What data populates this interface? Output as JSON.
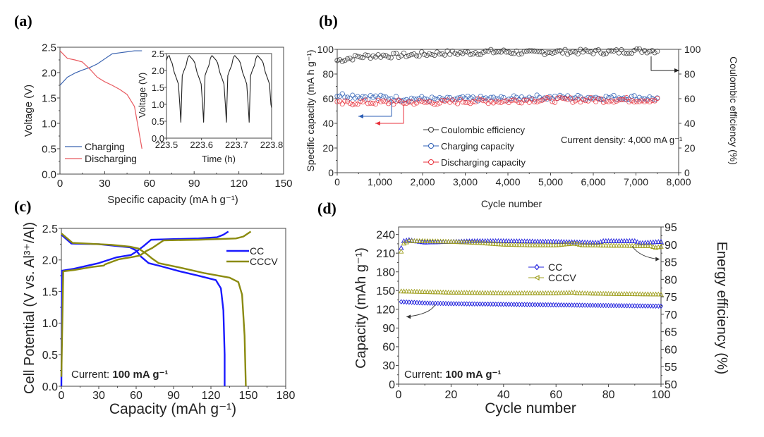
{
  "panels": {
    "a": {
      "label": "(a)"
    },
    "b": {
      "label": "(b)"
    },
    "c": {
      "label": "(c)"
    },
    "d": {
      "label": "(d)"
    }
  },
  "chart_data": [
    {
      "id": "a",
      "type": "line",
      "title": "",
      "xlabel": "Specific capacity (mA h g⁻¹)",
      "ylabel": "Voltage (V)",
      "xlim": [
        0,
        150
      ],
      "ylim": [
        0,
        2.5
      ],
      "xticks": [
        0,
        30,
        60,
        90,
        120,
        150
      ],
      "yticks": [
        0.0,
        0.5,
        1.0,
        1.5,
        2.0,
        2.5
      ],
      "xtick_labels": [
        "0",
        "30",
        "60",
        "90",
        "120",
        "150"
      ],
      "ytick_labels": [
        "0.0",
        "0.5",
        "1.0",
        "1.5",
        "2.0",
        "2.5"
      ],
      "legend": {
        "position": "bottom-left",
        "entries": [
          "Charging",
          "Discharging"
        ]
      },
      "series": [
        {
          "name": "Charging",
          "color": "#3a63b0",
          "x": [
            0,
            5,
            10,
            15,
            20,
            25,
            30,
            35,
            40,
            45,
            50,
            55
          ],
          "y": [
            1.75,
            1.91,
            1.99,
            2.05,
            2.1,
            2.17,
            2.27,
            2.37,
            2.39,
            2.41,
            2.43,
            2.43
          ]
        },
        {
          "name": "Discharging",
          "color": "#e8595f",
          "x": [
            0,
            5,
            10,
            15,
            20,
            25,
            30,
            35,
            40,
            45,
            50,
            55
          ],
          "y": [
            2.43,
            2.28,
            2.25,
            2.21,
            2.07,
            1.91,
            1.82,
            1.75,
            1.67,
            1.57,
            1.33,
            0.5
          ]
        }
      ],
      "inset": {
        "type": "line",
        "xlabel": "Time (h)",
        "ylabel": "Voltage (V)",
        "xlim": [
          223.5,
          223.8
        ],
        "ylim": [
          0,
          2.5
        ],
        "xticks": [
          223.5,
          223.6,
          223.7,
          223.8
        ],
        "yticks": [
          0.0,
          0.5,
          1.0,
          1.5,
          2.0,
          2.5
        ],
        "xtick_labels": [
          "223.5",
          "223.6",
          "223.7",
          "223.8"
        ],
        "ytick_labels": [
          "0.0",
          "0.5",
          "1.0",
          "1.5",
          "2.0",
          "2.5"
        ],
        "series": [
          {
            "name": "Voltage profile",
            "color": "#222222",
            "cycle_start_times": [
              223.5,
              223.542,
              223.607,
              223.672,
              223.737
            ],
            "cycle_period_h": 0.065,
            "min_voltage": 0.47,
            "max_voltage": 2.44
          }
        ]
      }
    },
    {
      "id": "b",
      "type": "scatter",
      "xlabel": "Cycle number",
      "ylabel": "Specific capacity (mA h g⁻¹)",
      "y2label": "Coulombic efficiency (%)",
      "xlim": [
        0,
        8000
      ],
      "ylim": [
        0,
        100
      ],
      "y2lim": [
        0,
        100
      ],
      "xticks": [
        0,
        1000,
        2000,
        3000,
        4000,
        5000,
        6000,
        7000,
        8000
      ],
      "xtick_labels": [
        "0",
        "1,000",
        "2,000",
        "3,000",
        "4,000",
        "5,000",
        "6,000",
        "7,000",
        "8,000"
      ],
      "yticks": [
        0,
        20,
        40,
        60,
        80,
        100
      ],
      "ytick_labels": [
        "0",
        "20",
        "40",
        "60",
        "80",
        "100"
      ],
      "y2ticks": [
        0,
        20,
        40,
        60,
        80,
        100
      ],
      "y2tick_labels": [
        "0",
        "20",
        "40",
        "60",
        "80",
        "100"
      ],
      "annotation": "Current density: 4,000 mA g⁻¹",
      "legend": {
        "position": "bottom-left",
        "entries": [
          "Coulombic efficiency",
          "Charging capacity",
          "Discharging capacity"
        ]
      },
      "series": [
        {
          "name": "Coulombic efficiency",
          "color": "#333333",
          "axis": "right",
          "x": [
            0,
            500,
            1000,
            1500,
            2000,
            2500,
            3000,
            3500,
            4000,
            4500,
            5000,
            5500,
            6000,
            6500,
            7000,
            7550
          ],
          "y": [
            91,
            94,
            95,
            95,
            96,
            97,
            97,
            98,
            98,
            97,
            98,
            98,
            98,
            98,
            99,
            99
          ]
        },
        {
          "name": "Charging capacity",
          "color": "#2e5fb5",
          "axis": "left",
          "x": [
            0,
            500,
            1000,
            1500,
            2000,
            2500,
            3000,
            3500,
            4000,
            4500,
            5000,
            5500,
            6000,
            6500,
            7000,
            7550
          ],
          "y": [
            63,
            62,
            61,
            60,
            60,
            59,
            60,
            60,
            60,
            61,
            61,
            61,
            61,
            61,
            61,
            60
          ]
        },
        {
          "name": "Discharging capacity",
          "color": "#e8323c",
          "axis": "left",
          "x": [
            0,
            500,
            1000,
            1500,
            2000,
            2500,
            3000,
            3500,
            4000,
            4500,
            5000,
            5500,
            6000,
            6500,
            7000,
            7550
          ],
          "y": [
            56,
            57,
            57,
            57,
            57,
            57,
            58,
            58,
            58,
            59,
            59,
            59,
            59,
            59,
            59,
            59
          ]
        }
      ]
    },
    {
      "id": "c",
      "type": "line",
      "xlabel": "Capacity (mAh g⁻¹)",
      "ylabel": "Cell Potential (V vs. Al³⁺/Al)",
      "xlim": [
        0,
        180
      ],
      "ylim": [
        0,
        2.5
      ],
      "xticks": [
        0,
        30,
        60,
        90,
        120,
        150,
        180
      ],
      "xtick_labels": [
        "0",
        "30",
        "60",
        "90",
        "120",
        "150",
        "180"
      ],
      "yticks": [
        0.0,
        0.5,
        1.0,
        1.5,
        2.0,
        2.5
      ],
      "ytick_labels": [
        "0.0",
        "0.5",
        "1.0",
        "1.5",
        "2.0",
        "2.5"
      ],
      "annotation": {
        "prefix": "Current: ",
        "bold": "100 mA g⁻¹"
      },
      "legend": {
        "position": "top-right",
        "entries": [
          "CC",
          "CCCV"
        ]
      },
      "series": [
        {
          "name": "CC charge",
          "legend": "CC",
          "color": "#1a1aff",
          "x": [
            0,
            0.5,
            10,
            30,
            44,
            56,
            60,
            66,
            72,
            90,
            110,
            125,
            130,
            134
          ],
          "y": [
            0.0,
            1.83,
            1.86,
            1.95,
            2.04,
            2.08,
            2.13,
            2.22,
            2.32,
            2.33,
            2.34,
            2.36,
            2.4,
            2.45
          ]
        },
        {
          "name": "CC discharge",
          "legend": "CC",
          "color": "#1a1aff",
          "x": [
            0,
            8,
            30,
            55,
            60,
            64,
            70,
            80,
            95,
            110,
            124,
            128,
            130,
            131,
            131
          ],
          "y": [
            2.4,
            2.26,
            2.25,
            2.2,
            2.15,
            2.05,
            1.95,
            1.9,
            1.82,
            1.75,
            1.68,
            1.55,
            1.2,
            0.5,
            0.0
          ]
        },
        {
          "name": "CCCV charge",
          "legend": "CCCV",
          "color": "#8b8b0f",
          "x": [
            0,
            1.5,
            10,
            25,
            34,
            35,
            46,
            58,
            63,
            68,
            73,
            82,
            110,
            140,
            146,
            152
          ],
          "y": [
            0.15,
            1.82,
            1.84,
            1.89,
            1.91,
            1.93,
            2.01,
            2.05,
            2.07,
            2.14,
            2.19,
            2.31,
            2.32,
            2.34,
            2.37,
            2.45
          ]
        },
        {
          "name": "CCCV discharge",
          "legend": "CCCV",
          "color": "#8b8b0f",
          "x": [
            0,
            9,
            40,
            55,
            62,
            68,
            73,
            78,
            95,
            115,
            135,
            142,
            145,
            147,
            148
          ],
          "y": [
            2.42,
            2.27,
            2.24,
            2.21,
            2.18,
            2.1,
            2.02,
            1.95,
            1.88,
            1.79,
            1.72,
            1.65,
            1.45,
            0.8,
            0.0
          ]
        }
      ]
    },
    {
      "id": "d",
      "type": "scatter",
      "xlabel": "Cycle number",
      "ylabel": "Capacity (mAh g⁻¹)",
      "y2label": "Energy efficiency (%)",
      "xlim": [
        0,
        100
      ],
      "ylim": [
        0,
        252
      ],
      "y2lim": [
        50,
        95
      ],
      "xticks": [
        0,
        20,
        40,
        60,
        80,
        100
      ],
      "xtick_labels": [
        "0",
        "20",
        "40",
        "60",
        "80",
        "100"
      ],
      "yticks": [
        0,
        30,
        60,
        90,
        120,
        150,
        180,
        210,
        240
      ],
      "ytick_labels": [
        "0",
        "30",
        "60",
        "90",
        "120",
        "150",
        "180",
        "210",
        "240"
      ],
      "y2ticks": [
        50,
        55,
        60,
        65,
        70,
        75,
        80,
        85,
        90,
        95
      ],
      "y2tick_labels": [
        "50",
        "55",
        "60",
        "65",
        "70",
        "75",
        "80",
        "85",
        "90",
        "95"
      ],
      "annotation": {
        "prefix": "Current: ",
        "bold": "100 mA g⁻¹"
      },
      "legend": {
        "position": "top-right",
        "entries": [
          "CC",
          "CCCV"
        ]
      },
      "series": [
        {
          "name": "CC capacity",
          "legend": "CC",
          "color": "#2222dd",
          "axis": "left",
          "marker": "diamond",
          "x": [
            1,
            10,
            20,
            40,
            60,
            80,
            100
          ],
          "y": [
            132,
            130,
            129,
            128,
            127,
            126,
            125
          ]
        },
        {
          "name": "CCCV capacity",
          "legend": "CCCV",
          "color": "#a0a020",
          "axis": "left",
          "marker": "triangle",
          "x": [
            1,
            10,
            20,
            40,
            60,
            67,
            68,
            80,
            100
          ],
          "y": [
            149,
            148,
            147,
            146,
            146,
            147,
            146,
            145,
            144
          ]
        },
        {
          "name": "CC energy efficiency",
          "legend": "CC",
          "color": "#2222dd",
          "axis": "right",
          "marker": "triangle",
          "x": [
            1,
            2,
            4,
            6,
            10,
            20,
            30,
            40,
            60,
            76,
            78,
            90,
            92,
            100
          ],
          "y": [
            89,
            91,
            91.3,
            91,
            90.6,
            90.8,
            91,
            91,
            90.8,
            90.5,
            91,
            91,
            90.4,
            90.8
          ]
        },
        {
          "name": "CCCV energy efficiency",
          "legend": "CCCV",
          "color": "#a0a020",
          "axis": "right",
          "marker": "triangle",
          "x": [
            1,
            2,
            4,
            10,
            20,
            30,
            40,
            50,
            60,
            67,
            70,
            80,
            90,
            96,
            98,
            100
          ],
          "y": [
            88,
            90.3,
            91,
            91,
            90.8,
            90.5,
            90,
            89.8,
            89.8,
            90.3,
            89.8,
            89.7,
            89.6,
            89.6,
            89.1,
            89.4
          ]
        }
      ]
    }
  ]
}
